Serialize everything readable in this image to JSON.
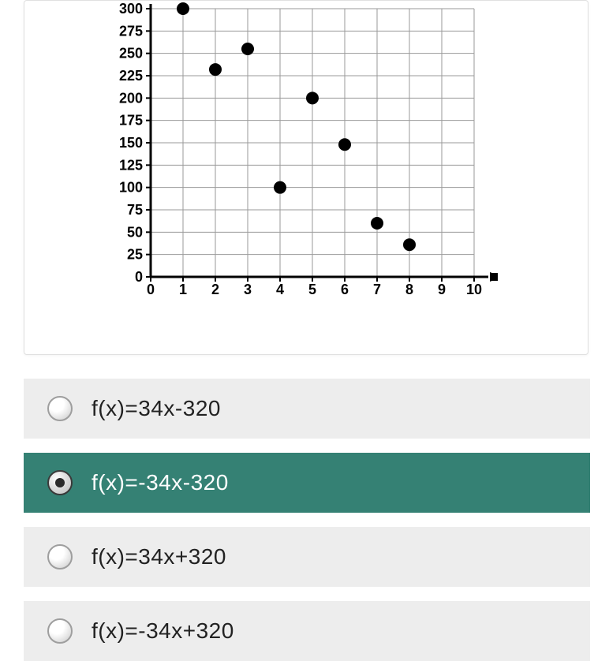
{
  "chart": {
    "type": "scatter",
    "xlim": [
      0,
      10
    ],
    "ylim": [
      0,
      300
    ],
    "xtick_step": 1,
    "ytick_step": 25,
    "x_ticks": [
      0,
      1,
      2,
      3,
      4,
      5,
      6,
      7,
      8,
      9,
      10
    ],
    "y_ticks": [
      0,
      25,
      50,
      75,
      100,
      125,
      150,
      175,
      200,
      225,
      250,
      275,
      300
    ],
    "points": [
      {
        "x": 1,
        "y": 300
      },
      {
        "x": 2,
        "y": 232
      },
      {
        "x": 3,
        "y": 255
      },
      {
        "x": 4,
        "y": 100
      },
      {
        "x": 5,
        "y": 200
      },
      {
        "x": 6,
        "y": 148
      },
      {
        "x": 7,
        "y": 60
      },
      {
        "x": 8,
        "y": 36
      }
    ],
    "axis_color": "#000000",
    "grid_color": "#9a9a9a",
    "point_color": "#000000",
    "point_radius": 8,
    "tick_fontsize": 18,
    "axis_line_width": 3,
    "grid_line_width": 1,
    "background_color": "#ffffff"
  },
  "options": [
    {
      "label": "f(x)=34x-320",
      "selected": false
    },
    {
      "label": "f(x)=-34x-320",
      "selected": true
    },
    {
      "label": "f(x)=34x+320",
      "selected": false
    },
    {
      "label": "f(x)=-34x+320",
      "selected": false
    }
  ],
  "colors": {
    "option_bg": "#ededed",
    "option_selected_bg": "#358174",
    "option_selected_fg": "#ffffff",
    "card_border": "#e0e0e0"
  }
}
